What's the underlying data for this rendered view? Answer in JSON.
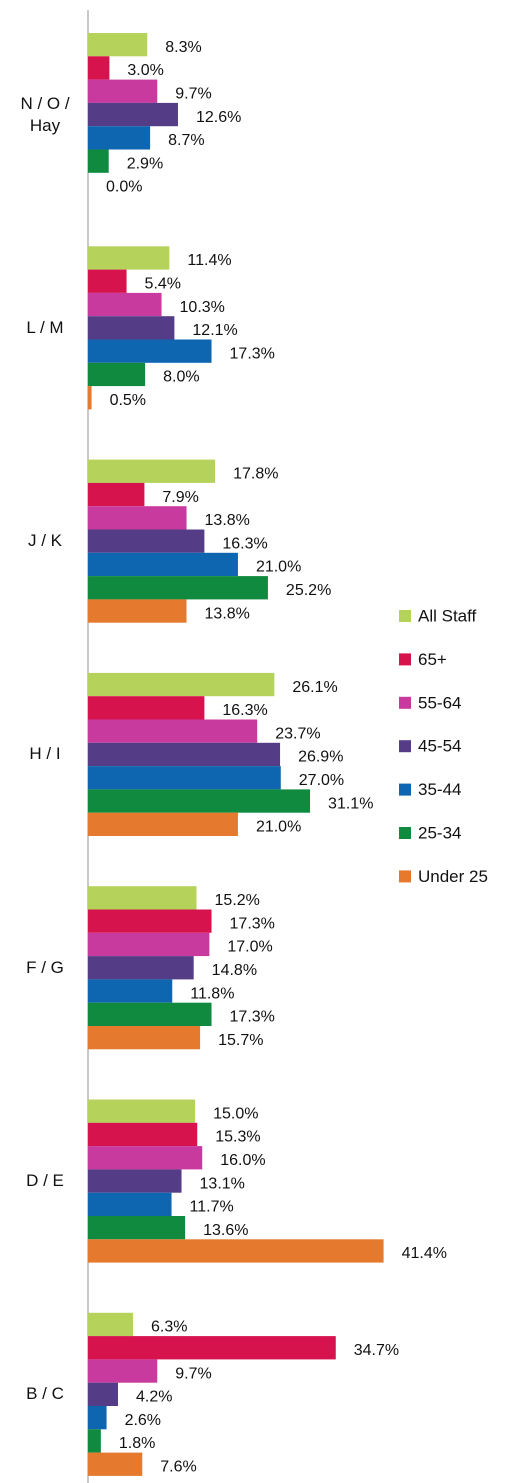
{
  "chart_data": {
    "type": "hbar",
    "categories": [
      "N / O / Hay",
      "L / M",
      "J / K",
      "H / I",
      "F / G",
      "D / E",
      "B / C"
    ],
    "series": [
      {
        "name": "All Staff",
        "color": "#b5d35a",
        "values": [
          8.3,
          11.4,
          17.8,
          26.1,
          15.2,
          15.0,
          6.3
        ],
        "value_labels": [
          "8.3%",
          "11.4%",
          "17.8%",
          "26.1%",
          "15.2%",
          "15.0%",
          "6.3%"
        ]
      },
      {
        "name": "65+",
        "color": "#d7134e",
        "values": [
          3.0,
          5.4,
          7.9,
          16.3,
          17.3,
          15.3,
          34.7
        ],
        "value_labels": [
          "3.0%",
          "5.4%",
          "7.9%",
          "16.3%",
          "17.3%",
          "15.3%",
          "34.7%"
        ]
      },
      {
        "name": "55-64",
        "color": "#c83a9e",
        "values": [
          9.7,
          10.3,
          13.8,
          23.7,
          17.0,
          16.0,
          9.7
        ],
        "value_labels": [
          "9.7%",
          "10.3%",
          "13.8%",
          "23.7%",
          "17.0%",
          "16.0%",
          "9.7%"
        ]
      },
      {
        "name": "45-54",
        "color": "#553c87",
        "values": [
          12.6,
          12.1,
          16.3,
          26.9,
          14.8,
          13.1,
          4.2
        ],
        "value_labels": [
          "12.6%",
          "12.1%",
          "16.3%",
          "26.9%",
          "14.8%",
          "13.1%",
          "4.2%"
        ]
      },
      {
        "name": "35-44",
        "color": "#0f66b0",
        "values": [
          8.7,
          17.3,
          21.0,
          27.0,
          11.8,
          11.7,
          2.6
        ],
        "value_labels": [
          "8.7%",
          "17.3%",
          "21.0%",
          "27.0%",
          "11.8%",
          "11.7%",
          "2.6%"
        ]
      },
      {
        "name": "25-34",
        "color": "#0f8a3e",
        "values": [
          2.9,
          8.0,
          25.2,
          31.1,
          17.3,
          13.6,
          1.8
        ],
        "value_labels": [
          "2.9%",
          "8.0%",
          "25.2%",
          "31.1%",
          "17.3%",
          "13.6%",
          "1.8%"
        ]
      },
      {
        "name": "Under 25",
        "color": "#e57a2e",
        "values": [
          0.0,
          0.5,
          13.8,
          21.0,
          15.7,
          41.4,
          7.6
        ],
        "value_labels": [
          "0.0%",
          "0.5%",
          "13.8%",
          "21.0%",
          "15.7%",
          "41.4%",
          "7.6%"
        ]
      }
    ],
    "legend": "right"
  }
}
